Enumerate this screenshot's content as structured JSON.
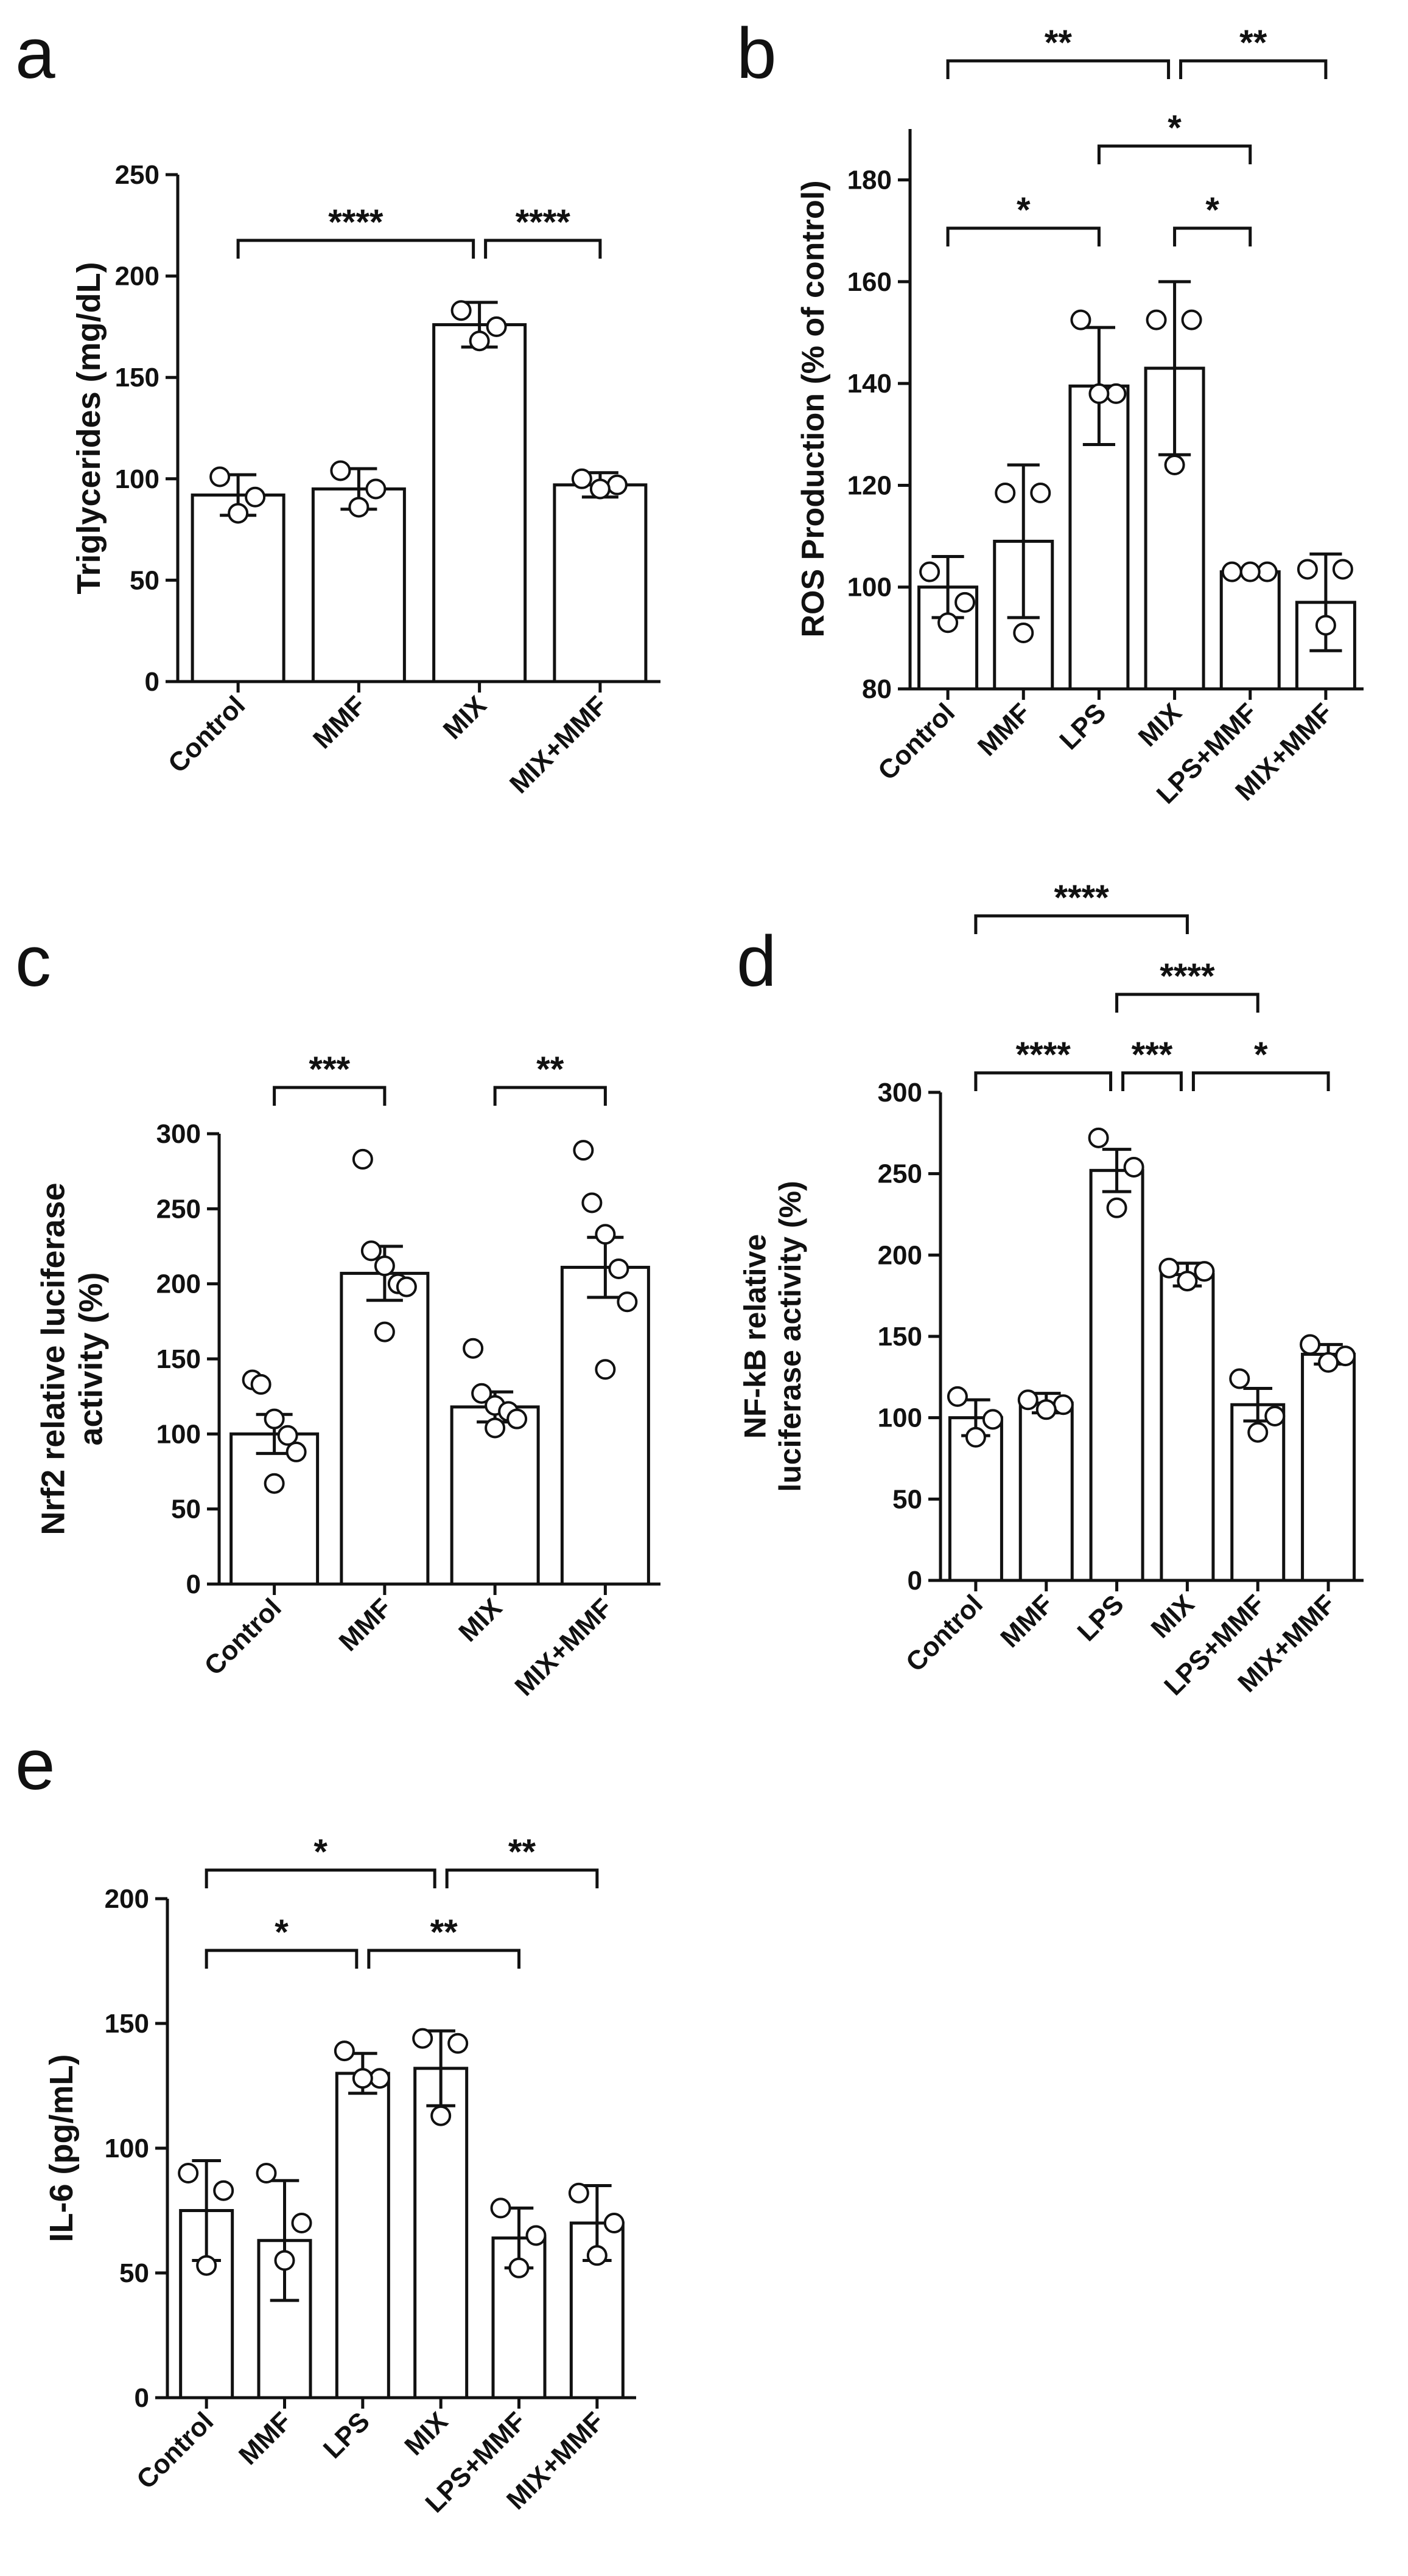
{
  "figure": {
    "panels": [
      "a",
      "b",
      "c",
      "d",
      "e"
    ]
  },
  "chart_data": [
    {
      "id": "a",
      "type": "bar",
      "panel_label": "a",
      "categories": [
        "Control",
        "MMF",
        "MIX",
        "MIX+MMF"
      ],
      "values": [
        92,
        95,
        176,
        97
      ],
      "errors": [
        10,
        10,
        11,
        6
      ],
      "points": [
        [
          101,
          91,
          83
        ],
        [
          104,
          95,
          86
        ],
        [
          183,
          175,
          168
        ],
        [
          100,
          97,
          95
        ]
      ],
      "ylabel": [
        "Triglycerides (mg/dL)"
      ],
      "ylim": [
        0,
        250
      ],
      "yticks": [
        0,
        50,
        100,
        150,
        200,
        250
      ],
      "significance": [
        {
          "from": 0,
          "to": 2,
          "label": "****"
        },
        {
          "from": 2,
          "to": 3,
          "label": "****"
        }
      ]
    },
    {
      "id": "b",
      "type": "bar",
      "panel_label": "b",
      "categories": [
        "Control",
        "MMF",
        "LPS",
        "MIX",
        "LPS+MMF",
        "MIX+MMF"
      ],
      "values": [
        100,
        109,
        139.5,
        143,
        103,
        97
      ],
      "errors": [
        6,
        15,
        11.5,
        17,
        0.5,
        9.5
      ],
      "points": [
        [
          103,
          97,
          93
        ],
        [
          118.5,
          118.5,
          91
        ],
        [
          152.5,
          138,
          138
        ],
        [
          152.5,
          152.5,
          124
        ],
        [
          103,
          103,
          103
        ],
        [
          103.5,
          103.5,
          92.5
        ]
      ],
      "ylabel": [
        "ROS Production (% of control)"
      ],
      "ylim": [
        80,
        190
      ],
      "yticks": [
        80,
        100,
        120,
        140,
        160,
        180
      ],
      "significance": [
        {
          "from": 0,
          "to": 3,
          "label": "**"
        },
        {
          "from": 3,
          "to": 5,
          "label": "**"
        },
        {
          "from": 2,
          "to": 4,
          "label": "*"
        },
        {
          "from": 0,
          "to": 2,
          "label": "*"
        },
        {
          "from": 3,
          "to": 4,
          "label": "*"
        }
      ]
    },
    {
      "id": "c",
      "type": "bar",
      "panel_label": "c",
      "categories": [
        "Control",
        "MMF",
        "MIX",
        "MIX+MMF"
      ],
      "values": [
        100,
        207,
        118,
        211
      ],
      "errors": [
        13,
        18,
        10,
        20
      ],
      "points": [
        [
          136,
          133,
          110,
          99,
          88,
          67
        ],
        [
          283,
          222,
          212,
          200,
          198,
          168
        ],
        [
          157,
          127,
          119,
          115,
          110,
          104
        ],
        [
          289,
          254,
          233,
          210,
          188,
          143
        ]
      ],
      "ylabel": [
        "Nrf2 relative luciferase",
        "activity (%)"
      ],
      "ylim": [
        0,
        300
      ],
      "yticks": [
        0,
        50,
        100,
        150,
        200,
        250,
        300
      ],
      "significance": [
        {
          "from": 0,
          "to": 1,
          "label": "***"
        },
        {
          "from": 2,
          "to": 3,
          "label": "**"
        }
      ]
    },
    {
      "id": "d",
      "type": "bar",
      "panel_label": "d",
      "categories": [
        "Control",
        "MMF",
        "LPS",
        "MIX",
        "LPS+MMF",
        "MIX+MMF"
      ],
      "values": [
        100,
        109,
        252,
        188,
        108,
        139
      ],
      "errors": [
        11,
        6,
        13,
        7,
        10,
        6
      ],
      "points": [
        [
          113,
          99,
          88
        ],
        [
          111,
          108,
          105
        ],
        [
          272,
          254,
          229
        ],
        [
          192,
          190,
          184
        ],
        [
          124,
          101,
          91
        ],
        [
          145,
          138,
          134
        ]
      ],
      "ylabel": [
        "NF-kB relative",
        "luciferase activity (%)"
      ],
      "ylim": [
        0,
        300
      ],
      "yticks": [
        0,
        50,
        100,
        150,
        200,
        250,
        300
      ],
      "significance": [
        {
          "from": 0,
          "to": 3,
          "label": "****"
        },
        {
          "from": 2,
          "to": 4,
          "label": "****"
        },
        {
          "from": 0,
          "to": 2,
          "label": "****"
        },
        {
          "from": 2,
          "to": 3,
          "label": "***"
        },
        {
          "from": 3,
          "to": 5,
          "label": "*"
        }
      ]
    },
    {
      "id": "e",
      "type": "bar",
      "panel_label": "e",
      "categories": [
        "Control",
        "MMF",
        "LPS",
        "MIX",
        "LPS+MMF",
        "MIX+MMF"
      ],
      "values": [
        75,
        63,
        130,
        132,
        64,
        70
      ],
      "errors": [
        20,
        24,
        8,
        15,
        12,
        15
      ],
      "points": [
        [
          90,
          83,
          53
        ],
        [
          90,
          70,
          55
        ],
        [
          139,
          128,
          128
        ],
        [
          144,
          142,
          113
        ],
        [
          76,
          65,
          52
        ],
        [
          82,
          70,
          57
        ]
      ],
      "ylabel": [
        "IL-6 (pg/mL)"
      ],
      "ylim": [
        0,
        200
      ],
      "yticks": [
        0,
        50,
        100,
        150,
        200
      ],
      "significance": [
        {
          "from": 0,
          "to": 3,
          "label": "*"
        },
        {
          "from": 3,
          "to": 5,
          "label": "**"
        },
        {
          "from": 0,
          "to": 2,
          "label": "*"
        },
        {
          "from": 2,
          "to": 4,
          "label": "**"
        }
      ]
    }
  ]
}
